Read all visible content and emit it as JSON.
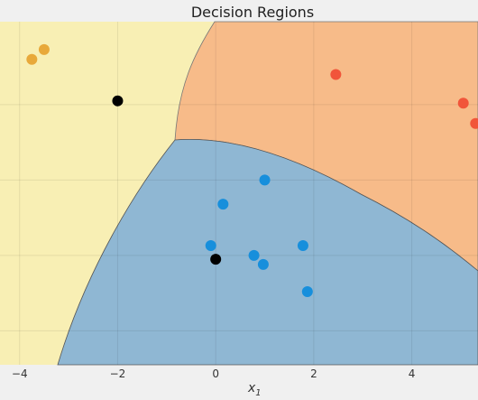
{
  "chart_data": {
    "type": "scatter",
    "title": "Decision Regions",
    "xlabel": "x",
    "xlabel_sub": "1",
    "ylabel": "",
    "xlim": [
      -4.4,
      5.35
    ],
    "ylim": [
      -1.95,
      2.6
    ],
    "grid": true,
    "x_ticks": [
      -4,
      -2,
      0,
      2,
      4
    ],
    "x_tick_labels": [
      "−4",
      "−2",
      "0",
      "2",
      "4"
    ],
    "regions": [
      {
        "name": "region-yellow",
        "color": "#f8efb4"
      },
      {
        "name": "region-orange",
        "color": "#f7bb89"
      },
      {
        "name": "region-blue",
        "color": "#8fb7d3"
      }
    ],
    "series": [
      {
        "color": "#e8a93a",
        "points": [
          [
            -3.75,
            2.1
          ],
          [
            -3.5,
            2.23
          ]
        ]
      },
      {
        "color": "#f1553a",
        "points": [
          [
            2.45,
            1.9
          ],
          [
            5.05,
            1.52
          ],
          [
            5.3,
            1.25
          ]
        ]
      },
      {
        "color": "#178fdc",
        "points": [
          [
            1.0,
            0.5
          ],
          [
            0.15,
            0.18
          ],
          [
            -0.1,
            -0.37
          ],
          [
            0.78,
            -0.5
          ],
          [
            1.78,
            -0.37
          ],
          [
            0.97,
            -0.62
          ],
          [
            1.87,
            -0.98
          ]
        ]
      },
      {
        "color": "#000000",
        "points": [
          [
            -2.0,
            1.55
          ],
          [
            0.0,
            -0.55
          ]
        ]
      }
    ]
  }
}
